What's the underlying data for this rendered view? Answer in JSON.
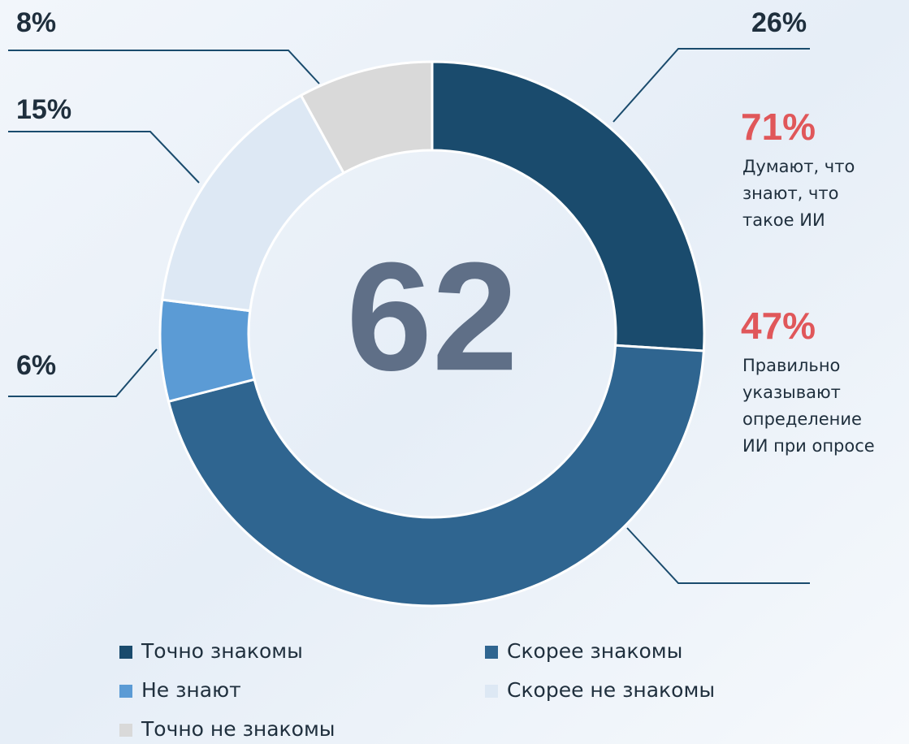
{
  "chart_data": {
    "type": "donut",
    "center_label": "62",
    "categories": [
      "Точно знакомы",
      "Скорее знакомы",
      "Не знают",
      "Скорее не знакомы",
      "Точно не знакомы"
    ],
    "values": [
      26,
      45,
      6,
      15,
      8
    ],
    "value_labels": [
      "26%",
      null,
      "6%",
      "15%",
      "8%"
    ],
    "colors": [
      "#1a4b6d",
      "#2f6590",
      "#5b9bd5",
      "#dde8f4",
      "#d9d9d9"
    ],
    "annotations": [
      {
        "value": "71%",
        "lines": [
          "Думают, что",
          "знают, что",
          "такое ИИ"
        ]
      },
      {
        "value": "47%",
        "lines": [
          "Правильно",
          "указывают",
          "определение",
          "ИИ при опросе"
        ]
      }
    ]
  }
}
